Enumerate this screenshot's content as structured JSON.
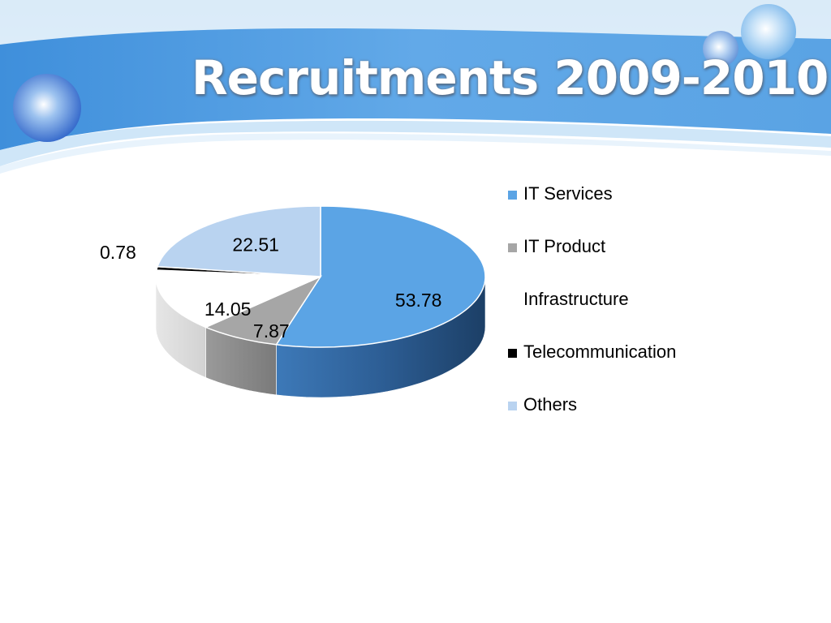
{
  "slide": {
    "title": "Recruitments 2009-2010"
  },
  "colors": {
    "banner_blue": "#5aa6e6",
    "banner_light": "#cfe6f8",
    "it_services": "#5ba4e5",
    "it_product": "#a6a6a6",
    "infrastructure": "#ffffff",
    "telecommunication": "#000000",
    "others": "#b9d3f0"
  },
  "chart_data": {
    "type": "pie",
    "title": "",
    "style": "3d",
    "legend_position": "right",
    "categories": [
      "IT Services",
      "IT Product",
      "Infrastructure",
      "Telecommunication",
      "Others"
    ],
    "legend_labels": [
      "IT Services",
      "IT Product",
      "Infrastructure",
      "Telecommunicati­on",
      "Others"
    ],
    "values": [
      53.78,
      7.87,
      14.05,
      0.78,
      22.51
    ],
    "data_labels": [
      "53.78",
      "7.87",
      "14.05",
      "0.78",
      "22.51"
    ]
  }
}
